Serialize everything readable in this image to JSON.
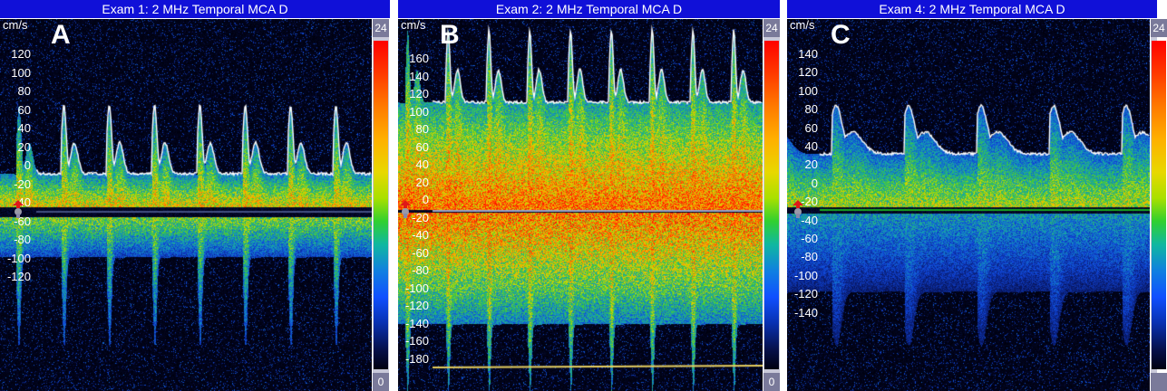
{
  "panels": [
    {
      "title": "Exam 1: 2 MHz Temporal MCA D",
      "label": "A",
      "unit": "cm/s",
      "ticks": [
        "120",
        "100",
        "80",
        "60",
        "40",
        "20",
        "0",
        "-20",
        "-40",
        "-60",
        "-80",
        "-100",
        "-120"
      ],
      "colorbar": {
        "top": "24",
        "bottom": "0"
      }
    },
    {
      "title": "Exam 2: 2 MHz Temporal MCA D",
      "label": "B",
      "unit": "cm/s",
      "ticks": [
        "160",
        "140",
        "120",
        "100",
        "80",
        "60",
        "40",
        "20",
        "0",
        "-20",
        "-40",
        "-60",
        "-80",
        "-100",
        "-120",
        "-140",
        "-160",
        "-180"
      ],
      "colorbar": {
        "top": "24",
        "bottom": "0"
      }
    },
    {
      "title": "Exam 4: 2 MHz Temporal MCA D",
      "label": "C",
      "unit": "cm/s",
      "ticks": [
        "140",
        "120",
        "100",
        "80",
        "60",
        "40",
        "20",
        "0",
        "-20",
        "-40",
        "-60",
        "-80",
        "-100",
        "-120",
        "-140"
      ],
      "colorbar": {
        "top": "24",
        "bottom": ""
      }
    }
  ],
  "colors": {
    "title_bar": "#1010d8",
    "background": "#00000a",
    "envelope": "#ffffff"
  }
}
